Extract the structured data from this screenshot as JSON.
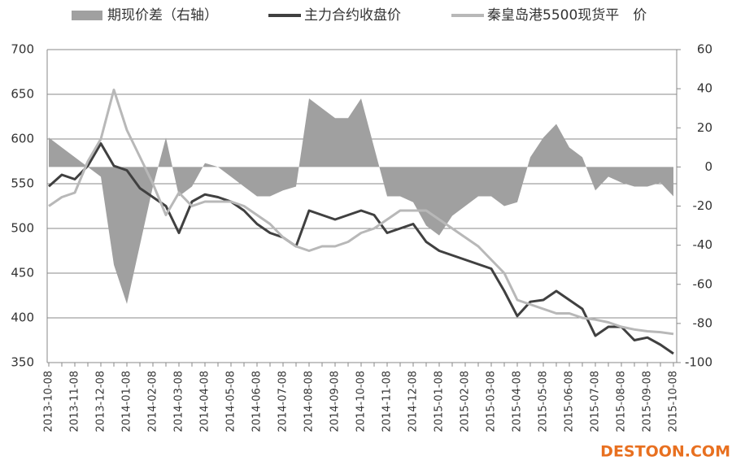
{
  "chart_data": {
    "type": "combo",
    "categories": [
      "2013-10-08",
      null,
      "2013-11-08",
      null,
      "2013-12-08",
      null,
      "2014-01-08",
      null,
      "2014-02-08",
      null,
      "2014-03-08",
      null,
      "2014-04-08",
      null,
      "2014-05-08",
      null,
      "2014-06-08",
      null,
      "2014-07-08",
      null,
      "2014-08-08",
      null,
      "2014-09-08",
      null,
      "2014-10-08",
      null,
      "2014-11-08",
      null,
      "2014-12-08",
      null,
      "2015-01-08",
      null,
      "2015-02-08",
      null,
      "2015-03-08",
      null,
      "2015-04-08",
      null,
      "2015-05-08",
      null,
      "2015-06-08",
      null,
      "2015-07-08",
      null,
      "2015-08-08",
      null,
      "2015-09-08",
      null,
      "2015-10-08"
    ],
    "series": [
      {
        "name": "期现价差（右轴）",
        "kind": "area",
        "axis": "y2",
        "color": "#a0a0a0",
        "values": [
          15,
          10,
          5,
          0,
          -5,
          -50,
          -70,
          -40,
          -10,
          15,
          -15,
          -10,
          2,
          0,
          -5,
          -10,
          -15,
          -15,
          -12,
          -10,
          35,
          30,
          25,
          25,
          35,
          10,
          -15,
          -15,
          -18,
          -30,
          -35,
          -25,
          -20,
          -15,
          -15,
          -20,
          -18,
          5,
          15,
          22,
          10,
          5,
          -12,
          -5,
          -8,
          -10,
          -10,
          -8,
          -15
        ]
      },
      {
        "name": "主力合约收盘价",
        "kind": "line",
        "color": "#404040",
        "values": [
          547,
          560,
          555,
          570,
          595,
          570,
          565,
          545,
          535,
          525,
          495,
          530,
          538,
          535,
          530,
          520,
          505,
          495,
          490,
          480,
          520,
          515,
          510,
          515,
          520,
          515,
          495,
          500,
          505,
          485,
          475,
          470,
          465,
          460,
          455,
          430,
          402,
          418,
          420,
          430,
          420,
          410,
          380,
          390,
          390,
          375,
          378,
          370,
          360
        ]
      },
      {
        "name": "秦皇岛港5500现货平　价",
        "kind": "line",
        "color": "#b8b8b8",
        "values": [
          525,
          535,
          540,
          575,
          600,
          655,
          610,
          580,
          550,
          515,
          540,
          525,
          530,
          530,
          530,
          525,
          515,
          505,
          490,
          480,
          475,
          480,
          480,
          485,
          495,
          500,
          510,
          520,
          520,
          520,
          510,
          500,
          490,
          480,
          465,
          450,
          420,
          415,
          410,
          405,
          405,
          400,
          398,
          395,
          390,
          387,
          385,
          384,
          382
        ]
      }
    ],
    "ylim": [
      350,
      700
    ],
    "yticks": [
      350,
      400,
      450,
      500,
      550,
      600,
      650,
      700
    ],
    "y2lim": [
      -100,
      60
    ],
    "y2ticks": [
      -100,
      -80,
      -60,
      -40,
      -20,
      0,
      20,
      40,
      60
    ],
    "grid": true,
    "legend": "top",
    "watermark": "DESTOON.COM"
  }
}
